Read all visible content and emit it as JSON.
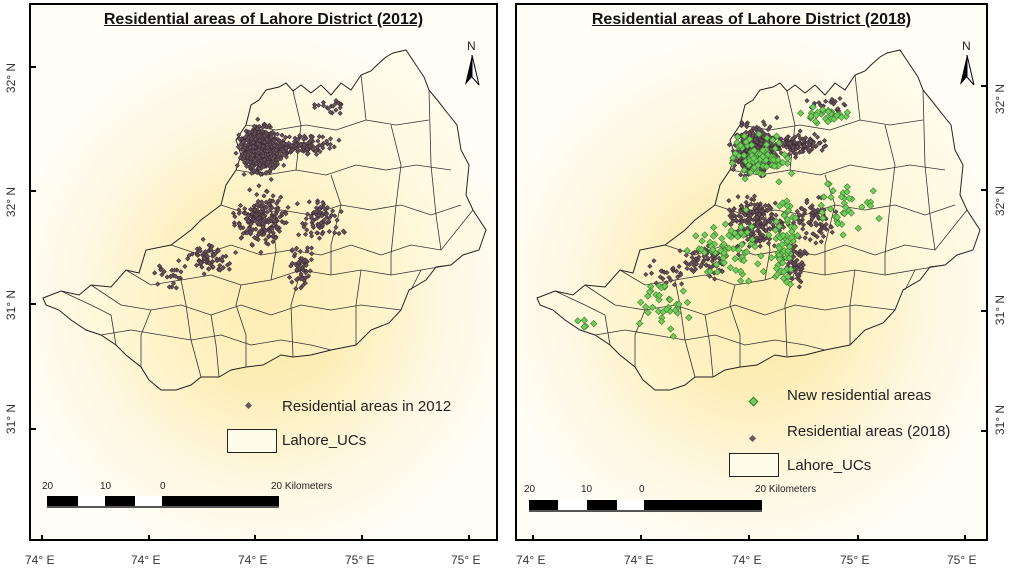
{
  "panels": [
    {
      "title": "Residential areas of Lahore District (2012)",
      "north_label": "N",
      "legend": [
        {
          "kind": "point",
          "label": "Residential areas in 2012",
          "color": "#6b5560"
        },
        {
          "kind": "polygon",
          "label": "Lahore_UCs",
          "color": "#fffbe9"
        }
      ],
      "scale_bar": {
        "labels": [
          "20",
          "10",
          "0",
          "20 Kilometers"
        ]
      },
      "lat_labels": [
        "32° N",
        "32° N",
        "31° N",
        "31° N"
      ],
      "lon_labels": [
        "74° E",
        "74° E",
        "74° E",
        "75° E",
        "75° E"
      ]
    },
    {
      "title": "Residential areas of Lahore District (2018)",
      "north_label": "N",
      "legend": [
        {
          "kind": "point",
          "label": "New residential  areas",
          "color": "#6fcf5a"
        },
        {
          "kind": "point",
          "label": "Residential areas (2018)",
          "color": "#6b5560"
        },
        {
          "kind": "polygon",
          "label": "Lahore_UCs",
          "color": "#fffbe9"
        }
      ],
      "scale_bar": {
        "labels": [
          "20",
          "10",
          "0",
          "20 Kilometers"
        ]
      },
      "lat_labels": [
        "32° N",
        "32° N",
        "31° N",
        "31° N"
      ],
      "lon_labels": [
        "74° E",
        "74° E",
        "74° E",
        "75° E",
        "75° E"
      ]
    }
  ],
  "colors": {
    "existing_points": "#6b5560",
    "new_points": "#6fcf5a",
    "boundary": "#222222",
    "frame": "#000000"
  }
}
